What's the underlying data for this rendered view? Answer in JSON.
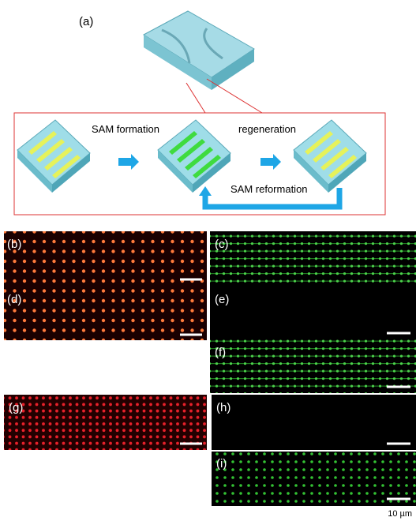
{
  "figure": {
    "panel_a": {
      "label": "(a)",
      "steps": [
        "SAM formation",
        "regeneration",
        "SAM reformation"
      ]
    },
    "panels": [
      "(b)",
      "(c)",
      "(d)",
      "(e)",
      "(f)",
      "(g)",
      "(h)",
      "(i)"
    ],
    "scale_bar": "10 µm"
  }
}
